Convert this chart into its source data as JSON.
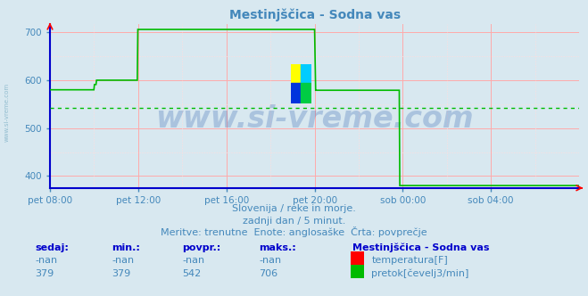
{
  "title": "Mestinjščica - Sodna vas",
  "bg_color": "#d8e8f0",
  "plot_bg_color": "#d8e8f0",
  "grid_color_major": "#ffaaaa",
  "grid_color_minor": "#ffdddd",
  "ylim_min": 375,
  "ylim_max": 718,
  "yticks": [
    400,
    500,
    600,
    700
  ],
  "xlabel_ticks": [
    "pet 08:00",
    "pet 12:00",
    "pet 16:00",
    "pet 20:00",
    "sob 00:00",
    "sob 04:00"
  ],
  "xlabel_positions_norm": [
    0.0,
    0.1667,
    0.3333,
    0.5,
    0.6667,
    0.8333
  ],
  "flow_color": "#00bb00",
  "avg_color": "#00bb00",
  "avg_value": 542,
  "watermark": "www.si-vreme.com",
  "watermark_color": "#2255aa",
  "watermark_alpha": 0.25,
  "subtitle1": "Slovenija / reke in morje.",
  "subtitle2": "zadnji dan / 5 minut.",
  "subtitle3": "Meritve: trenutne  Enote: angleоpaške  Črta: povprečje",
  "text_color": "#4488bb",
  "axis_color": "#0000cc",
  "legend_title": "Mestinjščica - Sodna vas",
  "legend_temp_label": "temperatura[F]",
  "legend_flow_label": "pretok[čevelj3/min]",
  "table_headers": [
    "sedaj:",
    "min.:",
    "povpr.:",
    "maks.:"
  ],
  "table_temp": [
    "-nan",
    "-nan",
    "-nan",
    "-nan"
  ],
  "table_flow": [
    "379",
    "379",
    "542",
    "706"
  ],
  "flow_data_x": [
    0.0,
    0.001,
    0.083,
    0.084,
    0.087,
    0.088,
    0.165,
    0.166,
    0.169,
    0.17,
    0.333,
    0.334,
    0.499,
    0.5,
    0.502,
    0.503,
    0.506,
    0.507,
    0.66,
    0.661,
    0.663,
    0.664,
    1.0
  ],
  "flow_data_y": [
    580,
    580,
    580,
    591,
    591,
    600,
    600,
    706,
    706,
    706,
    706,
    706,
    706,
    706,
    579,
    579,
    579,
    579,
    579,
    380,
    380,
    380,
    380
  ],
  "total_points": 288,
  "logo_colors": [
    "#ffff00",
    "#00aaff",
    "#0033cc",
    "#00cc44"
  ],
  "subtitle_fontsize": 8,
  "table_fontsize": 8
}
